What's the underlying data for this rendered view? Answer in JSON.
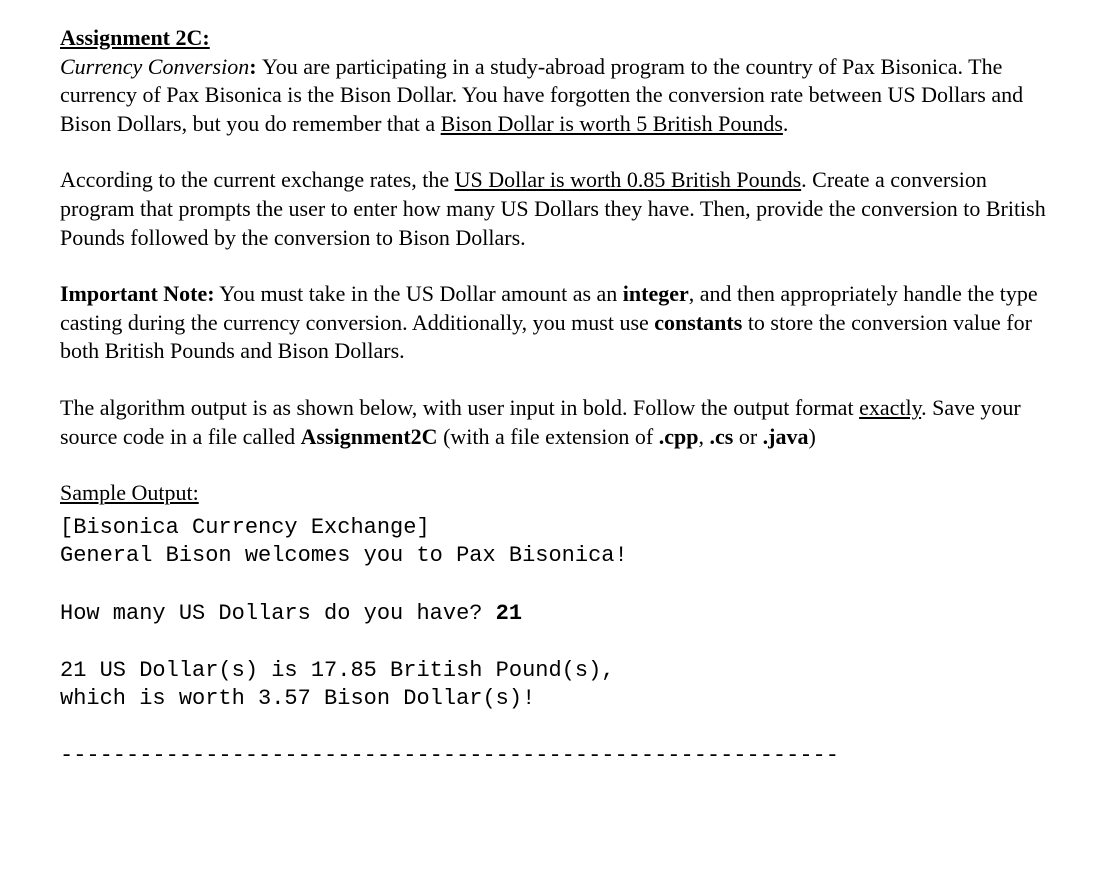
{
  "title": "Assignment 2C:",
  "p1": {
    "lead_italic": "Currency Conversion",
    "lead_colon": ": ",
    "text1": "You are participating in a study-abroad program to the country of Pax Bisonica. The currency of Pax Bisonica is the Bison Dollar. You have forgotten the conversion rate between US Dollars and Bison Dollars, but you do remember that a ",
    "under1": "Bison Dollar is worth 5 British Pounds",
    "text2": "."
  },
  "p2": {
    "text1": "According to the current exchange rates, the ",
    "under1": "US Dollar is worth 0.85 British Pounds",
    "text2": ". Create a conversion program that prompts the user to enter how many US Dollars they have. Then, provide the conversion to British Pounds followed by the conversion to Bison Dollars."
  },
  "p3": {
    "bold1": "Important Note:",
    "text1": " You must take in the US Dollar amount as an ",
    "bold2": "integer",
    "text2": ", and then appropriately handle the type casting during the currency conversion. Additionally, you must use ",
    "bold3": "constants",
    "text3": " to store the conversion value for both British Pounds and Bison Dollars."
  },
  "p4": {
    "text1": "The algorithm output is as shown below, with user input in bold. Follow the output format ",
    "under1": "exactly",
    "text2": ". Save your source code in a file called ",
    "bold1": "Assignment2C",
    "text3": " (with a file extension of ",
    "bold2": ".cpp",
    "text4": ", ",
    "bold3": ".cs",
    "text5": " or ",
    "bold4": ".java",
    "text6": ")"
  },
  "sample_label": "Sample Output:",
  "sample": {
    "l1": "[Bisonica Currency Exchange]",
    "l2": "General Bison welcomes you to Pax Bisonica!",
    "l3_prompt": "How many US Dollars do you have? ",
    "l3_input": "21",
    "l4": "21 US Dollar(s) is 17.85 British Pound(s),",
    "l5": "which is worth 3.57 Bison Dollar(s)!"
  },
  "divider": "-----------------------------------------------------------"
}
